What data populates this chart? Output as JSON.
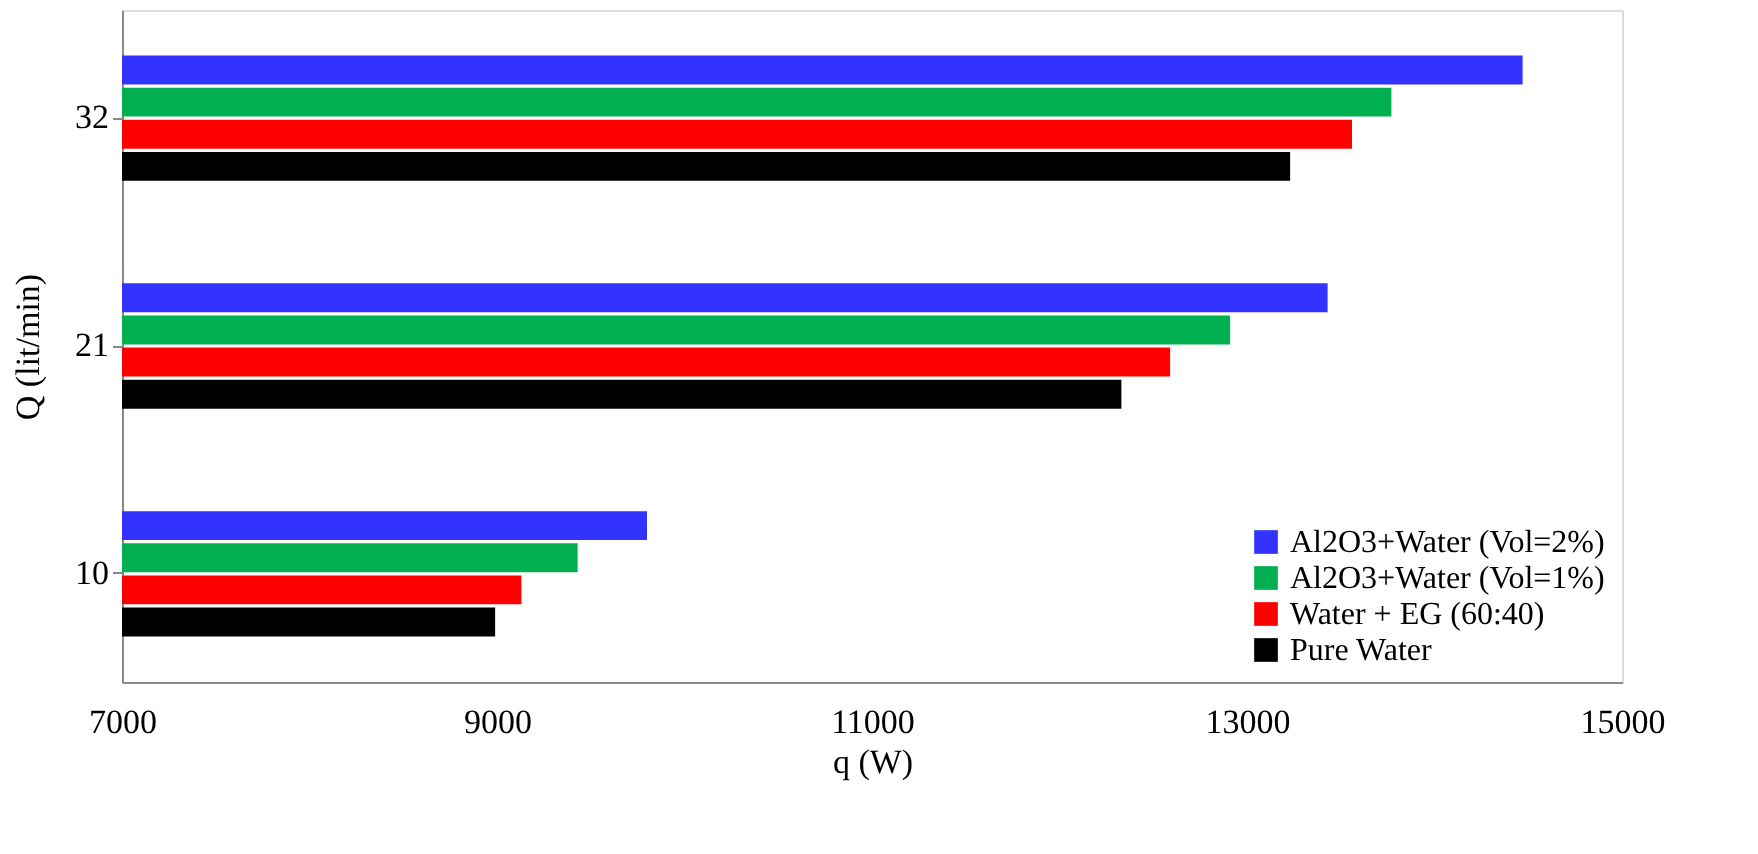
{
  "chart_data": {
    "type": "bar",
    "orientation": "horizontal",
    "xlabel": "q (W)",
    "ylabel": "Q (lit/min)",
    "categories": [
      "32",
      "21",
      "10"
    ],
    "series": [
      {
        "name": "Al2O3+Water (Vol=2%)",
        "color": "#3333ff",
        "values": [
          14470,
          13430,
          9800
        ]
      },
      {
        "name": "Al2O3+Water (Vol=1%)",
        "color": "#00b050",
        "values": [
          13770,
          12910,
          9430
        ]
      },
      {
        "name": "Water + EG (60:40)",
        "color": "#ff0000",
        "values": [
          13560,
          12590,
          9130
        ]
      },
      {
        "name": "Pure Water",
        "color": "#000000",
        "values": [
          13230,
          12330,
          8990
        ]
      }
    ],
    "xlim": [
      7000,
      15000
    ],
    "xticks": [
      7000,
      9000,
      11000,
      13000,
      15000
    ],
    "grid": false,
    "legend": "bottom right"
  }
}
